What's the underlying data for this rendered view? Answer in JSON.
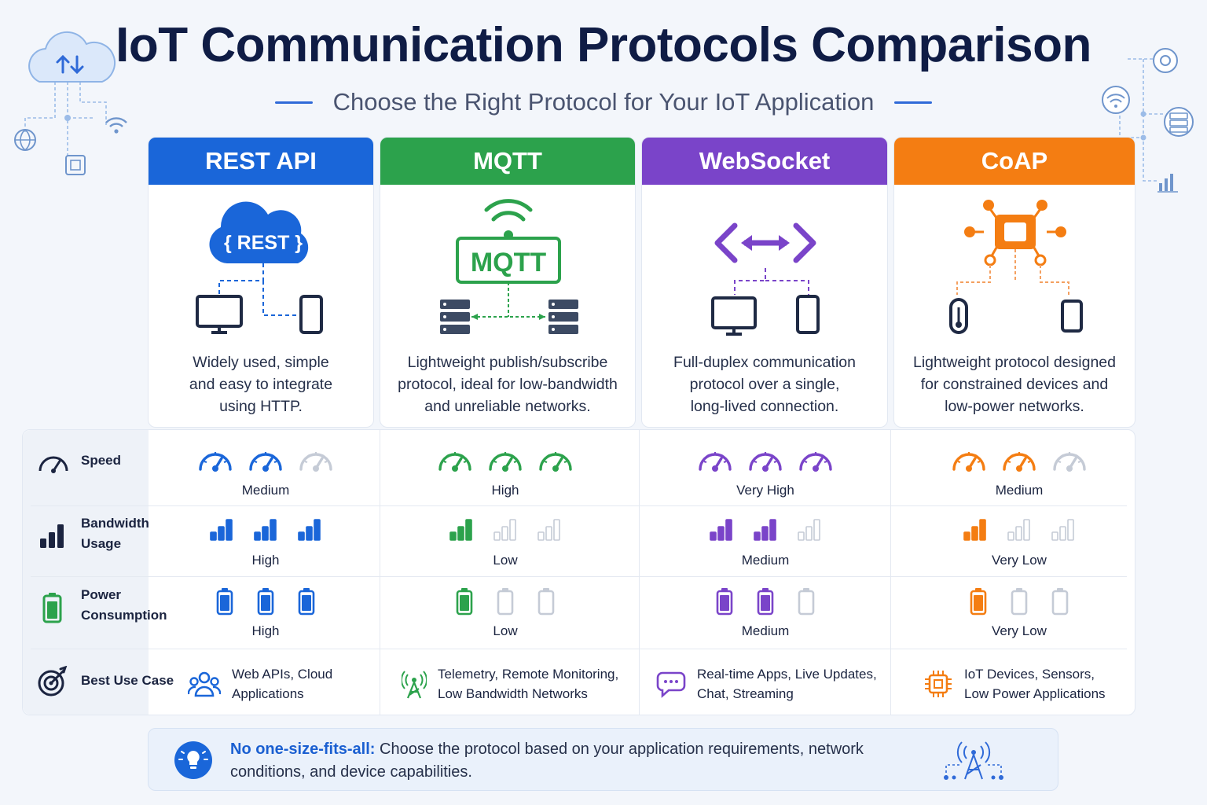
{
  "title": "IoT Communication Protocols Comparison",
  "subtitle": "Choose the Right Protocol for Your IoT Application",
  "colors": {
    "rest": "#1a66d9",
    "mqtt": "#2ca24c",
    "websocket": "#7a44c9",
    "coap": "#f47d12",
    "inactive": "#c5cbd6"
  },
  "protocols": [
    {
      "name": "REST API",
      "icon_label": "{ REST }",
      "description": [
        "Widely used, simple",
        "and easy to integrate",
        "using HTTP."
      ],
      "speed": {
        "value": "Medium",
        "level": 2
      },
      "bandwidth": {
        "value": "High",
        "level": 3
      },
      "power": {
        "value": "High",
        "level": 3
      },
      "use_case": {
        "icon": "users-icon",
        "lines": [
          "Web APIs, Cloud",
          "Applications"
        ]
      }
    },
    {
      "name": "MQTT",
      "icon_label": "MQTT",
      "description": [
        "Lightweight publish/subscribe",
        "protocol, ideal for low-bandwidth",
        "and unreliable networks."
      ],
      "speed": {
        "value": "High",
        "level": 3
      },
      "bandwidth": {
        "value": "Low",
        "level": 1
      },
      "power": {
        "value": "Low",
        "level": 1
      },
      "use_case": {
        "icon": "antenna-icon",
        "lines": [
          "Telemetry, Remote Monitoring,",
          "Low Bandwidth Networks"
        ]
      }
    },
    {
      "name": "WebSocket",
      "icon_label": "",
      "description": [
        "Full-duplex communication",
        "protocol over a single,",
        "long-lived connection."
      ],
      "speed": {
        "value": "Very High",
        "level": 3
      },
      "bandwidth": {
        "value": "Medium",
        "level": 2
      },
      "power": {
        "value": "Medium",
        "level": 2
      },
      "use_case": {
        "icon": "chat-icon",
        "lines": [
          "Real-time Apps, Live Updates,",
          "Chat, Streaming"
        ]
      }
    },
    {
      "name": "CoAP",
      "icon_label": "",
      "description": [
        "Lightweight protocol designed",
        "for constrained devices and",
        "low-power networks."
      ],
      "speed": {
        "value": "Medium",
        "level": 2
      },
      "bandwidth": {
        "value": "Very Low",
        "level": 1
      },
      "power": {
        "value": "Very Low",
        "level": 1
      },
      "use_case": {
        "icon": "chip-icon",
        "lines": [
          "IoT Devices, Sensors,",
          "Low Power Applications"
        ]
      }
    }
  ],
  "rows": {
    "speed": [
      "Speed"
    ],
    "bandwidth": [
      "Bandwidth",
      "Usage"
    ],
    "power": [
      "Power",
      "Consumption"
    ],
    "use_case": [
      "Best Use Case"
    ]
  },
  "banner": {
    "strong": "No one-size-fits-all:",
    "text": " Choose the protocol based on your application requirements, network conditions, and device capabilities."
  }
}
